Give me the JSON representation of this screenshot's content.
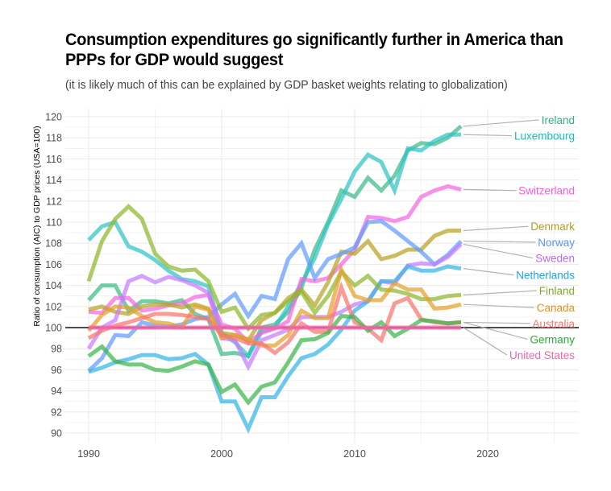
{
  "chart_data": {
    "type": "line",
    "title": "Consumption expenditures go significantly further in America than PPPs for GDP would suggest",
    "subtitle": "(it is likely much of this can be explained by GDP basket weights relating to globalization)",
    "xlabel": "",
    "ylabel": "Ratio of consumption (AIC) to GDP prices (USA=100)",
    "xlim": [
      1988,
      2026
    ],
    "ylim": [
      89,
      121
    ],
    "x_ticks": [
      1990,
      2000,
      2010,
      2020
    ],
    "y_ticks": [
      90,
      92,
      94,
      96,
      98,
      100,
      102,
      104,
      106,
      108,
      110,
      112,
      114,
      116,
      118,
      120
    ],
    "x_tick_labels": [
      "1990",
      "2000",
      "2010",
      "2020"
    ],
    "y_tick_labels": [
      "90",
      "92",
      "94",
      "96",
      "98",
      "100",
      "102",
      "104",
      "106",
      "108",
      "110",
      "112",
      "114",
      "116",
      "118",
      "120"
    ],
    "grid": true,
    "reference_line": 100,
    "legend": "direct-labels-right",
    "x": [
      1990,
      1991,
      1992,
      1993,
      1994,
      1995,
      1996,
      1997,
      1998,
      1999,
      2000,
      2001,
      2002,
      2003,
      2004,
      2005,
      2006,
      2007,
      2008,
      2009,
      2010,
      2011,
      2012,
      2013,
      2014,
      2015,
      2016,
      2017,
      2018
    ],
    "series": [
      {
        "name": "Ireland",
        "color": "#3cba88",
        "label_color": "#2db37f",
        "values": [
          102.6,
          104.0,
          104.0,
          101.6,
          102.5,
          102.5,
          102.3,
          102.6,
          101.3,
          100.8,
          97.5,
          97.6,
          97.3,
          100.0,
          100.3,
          101.5,
          103.8,
          107.4,
          110.0,
          113.0,
          112.4,
          114.2,
          113.0,
          114.4,
          116.8,
          117.5,
          117.4,
          118.0,
          119.1
        ]
      },
      {
        "name": "Luxembourg",
        "color": "#2ec4c6",
        "label_color": "#1fb8bb",
        "values": [
          108.3,
          109.6,
          110.0,
          107.7,
          107.2,
          106.4,
          105.4,
          104.6,
          104.4,
          103.9,
          99.5,
          98.6,
          97.3,
          99.6,
          100.0,
          102.0,
          104.2,
          106.6,
          109.8,
          112.2,
          114.8,
          116.4,
          115.7,
          113.0,
          117.0,
          116.8,
          117.7,
          118.3,
          118.3
        ]
      },
      {
        "name": "Switzerland",
        "color": "#f368e0",
        "label_color": "#ee5fda",
        "values": [
          101.5,
          101.4,
          102.8,
          102.8,
          101.6,
          101.8,
          102.1,
          102.3,
          102.9,
          103.1,
          100.3,
          99.9,
          98.6,
          99.5,
          99.9,
          100.6,
          104.6,
          104.4,
          104.7,
          106.0,
          107.4,
          110.5,
          110.4,
          110.1,
          110.5,
          112.4,
          113.0,
          113.4,
          113.1
        ]
      },
      {
        "name": "Denmark",
        "color": "#b8a427",
        "label_color": "#b39b1d",
        "values": [
          101.7,
          102.0,
          101.5,
          101.3,
          102.0,
          102.2,
          102.2,
          101.9,
          102.2,
          101.8,
          99.5,
          99.3,
          98.8,
          100.7,
          101.4,
          102.8,
          103.6,
          102.1,
          104.3,
          107.2,
          107.0,
          108.2,
          106.5,
          106.8,
          107.4,
          107.4,
          108.7,
          109.2,
          109.2
        ]
      },
      {
        "name": "Norway",
        "color": "#619cff",
        "label_color": "#5b96f8",
        "values": [
          95.9,
          97.1,
          99.3,
          99.2,
          100.5,
          100.2,
          100.1,
          100.3,
          100.8,
          101.0,
          102.2,
          103.2,
          101.1,
          103.0,
          102.7,
          106.5,
          108.0,
          104.7,
          106.5,
          107.0,
          107.6,
          110.0,
          110.1,
          109.2,
          108.2,
          107.2,
          106.0,
          106.9,
          108.2
        ]
      },
      {
        "name": "Sweden",
        "color": "#c77cff",
        "label_color": "#b868f5",
        "values": [
          98.0,
          100.0,
          100.7,
          104.4,
          104.9,
          104.3,
          104.8,
          104.5,
          104.0,
          103.3,
          99.0,
          98.8,
          96.3,
          98.8,
          99.3,
          99.8,
          101.0,
          101.0,
          101.0,
          101.5,
          102.2,
          102.5,
          104.4,
          104.2,
          105.9,
          106.1,
          106.0,
          106.7,
          107.9
        ]
      },
      {
        "name": "Netherlands",
        "color": "#35b6e8",
        "label_color": "#1aa9e3",
        "values": [
          95.8,
          96.2,
          96.7,
          97.0,
          97.4,
          97.4,
          97.0,
          97.1,
          97.5,
          96.5,
          93.0,
          93.0,
          90.4,
          93.4,
          93.4,
          95.4,
          97.1,
          97.5,
          98.4,
          99.8,
          101.6,
          102.5,
          104.4,
          104.4,
          105.8,
          105.4,
          105.4,
          105.8,
          105.6
        ]
      },
      {
        "name": "Finland",
        "color": "#8db72c",
        "label_color": "#7cad1d",
        "values": [
          104.4,
          108.2,
          110.3,
          111.5,
          110.3,
          107.0,
          105.8,
          105.4,
          105.5,
          104.4,
          101.5,
          101.9,
          99.9,
          101.2,
          101.4,
          102.5,
          103.4,
          101.4,
          103.0,
          105.3,
          104.0,
          104.9,
          103.6,
          103.5,
          103.2,
          102.7,
          102.7,
          103.0,
          103.1
        ]
      },
      {
        "name": "Canada",
        "color": "#e69f2b",
        "label_color": "#dd9227",
        "values": [
          99.7,
          101.2,
          102.0,
          101.9,
          101.1,
          100.5,
          100.4,
          100.0,
          102.0,
          101.7,
          99.0,
          99.3,
          98.9,
          98.3,
          98.3,
          99.3,
          101.6,
          100.9,
          100.9,
          105.5,
          103.0,
          102.6,
          102.6,
          104.2,
          103.6,
          103.6,
          101.8,
          101.9,
          102.2
        ]
      },
      {
        "name": "Australia",
        "color": "#f8766d",
        "label_color": "#f8766d",
        "values": [
          99.0,
          99.7,
          100.2,
          100.5,
          100.9,
          101.3,
          101.3,
          101.2,
          101.0,
          100.8,
          99.3,
          99.0,
          98.5,
          98.5,
          97.6,
          98.6,
          100.4,
          99.6,
          99.6,
          103.8,
          100.5,
          99.9,
          98.8,
          102.3,
          102.8,
          100.8,
          100.5,
          100.4,
          100.5
        ]
      },
      {
        "name": "Germany",
        "color": "#3cb54a",
        "label_color": "#2eab3c",
        "values": [
          97.3,
          98.2,
          96.8,
          96.5,
          96.5,
          96.0,
          95.9,
          96.3,
          96.8,
          96.5,
          93.9,
          94.6,
          92.9,
          94.4,
          94.8,
          96.7,
          98.8,
          98.9,
          99.5,
          101.1,
          101.0,
          99.7,
          100.5,
          99.2,
          99.9,
          100.7,
          100.6,
          100.4,
          100.5
        ]
      },
      {
        "name": "United States",
        "color": "#f564a8",
        "label_color": "#f564a8",
        "values": [
          100,
          100,
          100,
          100,
          100,
          100,
          100,
          100,
          100,
          100,
          100,
          100,
          100,
          100,
          100,
          100,
          100,
          100,
          100,
          100,
          100,
          100,
          100,
          100,
          100,
          100,
          100,
          100,
          100
        ]
      }
    ],
    "labels": [
      {
        "name": "Ireland",
        "y": 119.7
      },
      {
        "name": "Luxembourg",
        "y": 118.2
      },
      {
        "name": "Switzerland",
        "y": 113.0
      },
      {
        "name": "Denmark",
        "y": 109.6
      },
      {
        "name": "Norway",
        "y": 108.1
      },
      {
        "name": "Sweden",
        "y": 106.6
      },
      {
        "name": "Netherlands",
        "y": 105.0
      },
      {
        "name": "Finland",
        "y": 103.5
      },
      {
        "name": "Canada",
        "y": 101.9
      },
      {
        "name": "Australia",
        "y": 100.4
      },
      {
        "name": "Germany",
        "y": 98.9
      },
      {
        "name": "United States",
        "y": 97.4
      }
    ]
  }
}
